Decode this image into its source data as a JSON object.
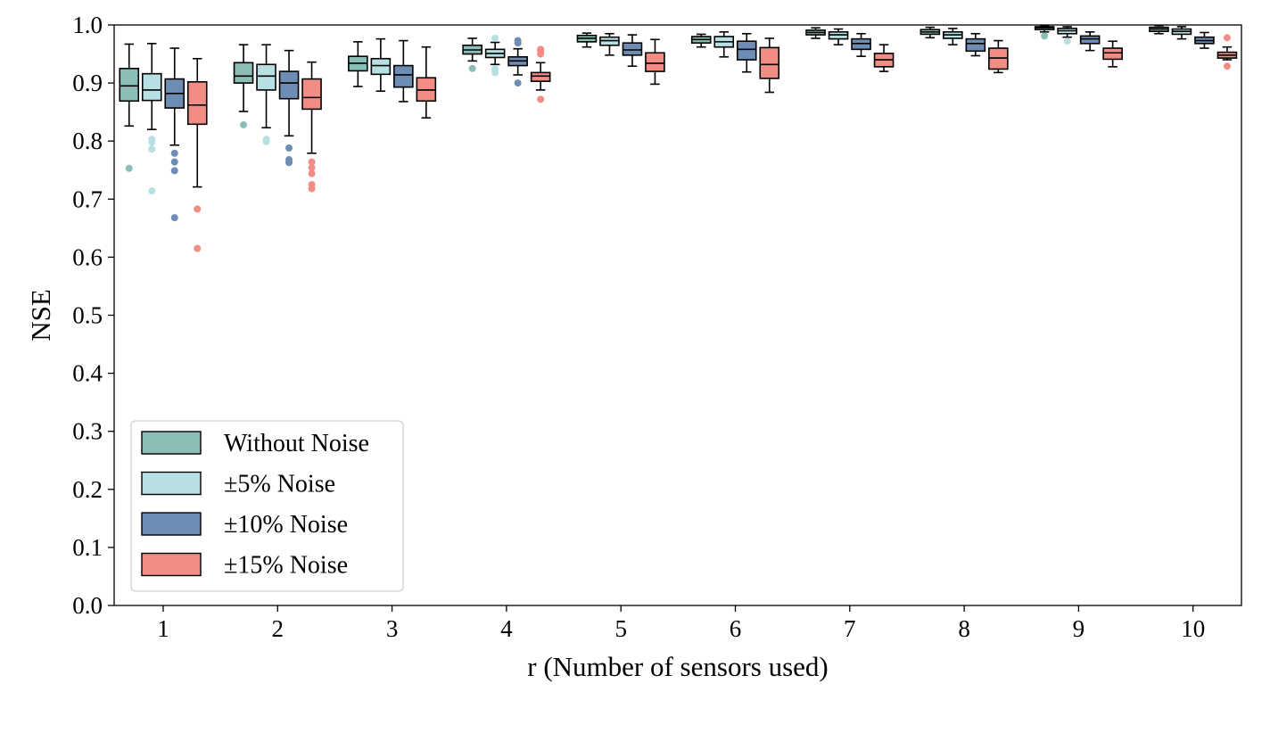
{
  "chart_data": {
    "type": "box",
    "xlabel": "r (Number of sensors used)",
    "ylabel": "NSE",
    "ylim": [
      0.0,
      1.0
    ],
    "yticks": [
      "0.0",
      "0.1",
      "0.2",
      "0.3",
      "0.4",
      "0.5",
      "0.6",
      "0.7",
      "0.8",
      "0.9",
      "1.0"
    ],
    "categories": [
      "1",
      "2",
      "3",
      "4",
      "5",
      "6",
      "7",
      "8",
      "9",
      "10"
    ],
    "legend_position": "lower-left",
    "grid": false,
    "series": [
      {
        "name": "Without Noise",
        "color": "#8bbfb6",
        "boxes": [
          {
            "whislo": 0.826,
            "q1": 0.869,
            "med": 0.895,
            "q3": 0.925,
            "whishi": 0.967,
            "fliers": [
              0.753
            ]
          },
          {
            "whislo": 0.851,
            "q1": 0.9,
            "med": 0.912,
            "q3": 0.935,
            "whishi": 0.966,
            "fliers": [
              0.828
            ]
          },
          {
            "whislo": 0.894,
            "q1": 0.921,
            "med": 0.934,
            "q3": 0.946,
            "whishi": 0.971,
            "fliers": []
          },
          {
            "whislo": 0.938,
            "q1": 0.95,
            "med": 0.957,
            "q3": 0.965,
            "whishi": 0.977,
            "fliers": [
              0.925
            ]
          },
          {
            "whislo": 0.962,
            "q1": 0.971,
            "med": 0.977,
            "q3": 0.982,
            "whishi": 0.986,
            "fliers": []
          },
          {
            "whislo": 0.962,
            "q1": 0.969,
            "med": 0.975,
            "q3": 0.98,
            "whishi": 0.984,
            "fliers": []
          },
          {
            "whislo": 0.977,
            "q1": 0.983,
            "med": 0.987,
            "q3": 0.991,
            "whishi": 0.995,
            "fliers": []
          },
          {
            "whislo": 0.978,
            "q1": 0.984,
            "med": 0.988,
            "q3": 0.992,
            "whishi": 0.996,
            "fliers": []
          },
          {
            "whislo": 0.988,
            "q1": 0.992,
            "med": 0.995,
            "q3": 0.997,
            "whishi": 0.999,
            "fliers": [
              0.981
            ]
          },
          {
            "whislo": 0.985,
            "q1": 0.989,
            "med": 0.993,
            "q3": 0.996,
            "whishi": 0.999,
            "fliers": []
          }
        ]
      },
      {
        "name": "±5% Noise",
        "color": "#b8e0e3",
        "boxes": [
          {
            "whislo": 0.82,
            "q1": 0.87,
            "med": 0.888,
            "q3": 0.916,
            "whishi": 0.968,
            "fliers": [
              0.803,
              0.798,
              0.786,
              0.714
            ]
          },
          {
            "whislo": 0.823,
            "q1": 0.888,
            "med": 0.912,
            "q3": 0.932,
            "whishi": 0.966,
            "fliers": [
              0.803,
              0.799
            ]
          },
          {
            "whislo": 0.886,
            "q1": 0.915,
            "med": 0.93,
            "q3": 0.942,
            "whishi": 0.976,
            "fliers": []
          },
          {
            "whislo": 0.932,
            "q1": 0.944,
            "med": 0.951,
            "q3": 0.958,
            "whishi": 0.97,
            "fliers": [
              0.977,
              0.925,
              0.918
            ]
          },
          {
            "whislo": 0.948,
            "q1": 0.965,
            "med": 0.973,
            "q3": 0.979,
            "whishi": 0.985,
            "fliers": []
          },
          {
            "whislo": 0.945,
            "q1": 0.962,
            "med": 0.971,
            "q3": 0.98,
            "whishi": 0.988,
            "fliers": []
          },
          {
            "whislo": 0.966,
            "q1": 0.976,
            "med": 0.983,
            "q3": 0.988,
            "whishi": 0.993,
            "fliers": []
          },
          {
            "whislo": 0.966,
            "q1": 0.977,
            "med": 0.983,
            "q3": 0.988,
            "whishi": 0.994,
            "fliers": []
          },
          {
            "whislo": 0.979,
            "q1": 0.985,
            "med": 0.99,
            "q3": 0.994,
            "whishi": 0.997,
            "fliers": [
              0.972
            ]
          },
          {
            "whislo": 0.976,
            "q1": 0.984,
            "med": 0.989,
            "q3": 0.993,
            "whishi": 0.997,
            "fliers": []
          }
        ]
      },
      {
        "name": "±10% Noise",
        "color": "#6e8db4",
        "boxes": [
          {
            "whislo": 0.793,
            "q1": 0.857,
            "med": 0.882,
            "q3": 0.907,
            "whishi": 0.96,
            "fliers": [
              0.779,
              0.764,
              0.749,
              0.668
            ]
          },
          {
            "whislo": 0.809,
            "q1": 0.873,
            "med": 0.9,
            "q3": 0.92,
            "whishi": 0.956,
            "fliers": [
              0.788,
              0.768,
              0.763
            ]
          },
          {
            "whislo": 0.868,
            "q1": 0.893,
            "med": 0.914,
            "q3": 0.93,
            "whishi": 0.973,
            "fliers": []
          },
          {
            "whislo": 0.914,
            "q1": 0.93,
            "med": 0.938,
            "q3": 0.945,
            "whishi": 0.959,
            "fliers": [
              0.973,
              0.969,
              0.9
            ]
          },
          {
            "whislo": 0.929,
            "q1": 0.948,
            "med": 0.957,
            "q3": 0.969,
            "whishi": 0.983,
            "fliers": []
          },
          {
            "whislo": 0.919,
            "q1": 0.94,
            "med": 0.958,
            "q3": 0.972,
            "whishi": 0.985,
            "fliers": []
          },
          {
            "whislo": 0.946,
            "q1": 0.958,
            "med": 0.968,
            "q3": 0.976,
            "whishi": 0.985,
            "fliers": []
          },
          {
            "whislo": 0.947,
            "q1": 0.955,
            "med": 0.968,
            "q3": 0.976,
            "whishi": 0.985,
            "fliers": []
          },
          {
            "whislo": 0.956,
            "q1": 0.968,
            "med": 0.976,
            "q3": 0.981,
            "whishi": 0.988,
            "fliers": []
          },
          {
            "whislo": 0.96,
            "q1": 0.968,
            "med": 0.973,
            "q3": 0.979,
            "whishi": 0.987,
            "fliers": []
          }
        ]
      },
      {
        "name": "±15% Noise",
        "color": "#f28d84",
        "boxes": [
          {
            "whislo": 0.721,
            "q1": 0.829,
            "med": 0.862,
            "q3": 0.902,
            "whishi": 0.942,
            "fliers": [
              0.683,
              0.615
            ]
          },
          {
            "whislo": 0.779,
            "q1": 0.855,
            "med": 0.875,
            "q3": 0.907,
            "whishi": 0.936,
            "fliers": [
              0.764,
              0.754,
              0.744,
              0.725,
              0.718
            ]
          },
          {
            "whislo": 0.84,
            "q1": 0.869,
            "med": 0.888,
            "q3": 0.909,
            "whishi": 0.962,
            "fliers": []
          },
          {
            "whislo": 0.888,
            "q1": 0.903,
            "med": 0.912,
            "q3": 0.918,
            "whishi": 0.935,
            "fliers": [
              0.958,
              0.955,
              0.95,
              0.872
            ]
          },
          {
            "whislo": 0.898,
            "q1": 0.92,
            "med": 0.934,
            "q3": 0.952,
            "whishi": 0.975,
            "fliers": []
          },
          {
            "whislo": 0.884,
            "q1": 0.908,
            "med": 0.932,
            "q3": 0.961,
            "whishi": 0.977,
            "fliers": []
          },
          {
            "whislo": 0.92,
            "q1": 0.928,
            "med": 0.94,
            "q3": 0.951,
            "whishi": 0.966,
            "fliers": []
          },
          {
            "whislo": 0.918,
            "q1": 0.924,
            "med": 0.943,
            "q3": 0.96,
            "whishi": 0.973,
            "fliers": []
          },
          {
            "whislo": 0.928,
            "q1": 0.941,
            "med": 0.952,
            "q3": 0.96,
            "whishi": 0.972,
            "fliers": []
          },
          {
            "whislo": 0.94,
            "q1": 0.943,
            "med": 0.948,
            "q3": 0.953,
            "whishi": 0.962,
            "fliers": [
              0.978,
              0.929
            ]
          }
        ]
      }
    ]
  }
}
